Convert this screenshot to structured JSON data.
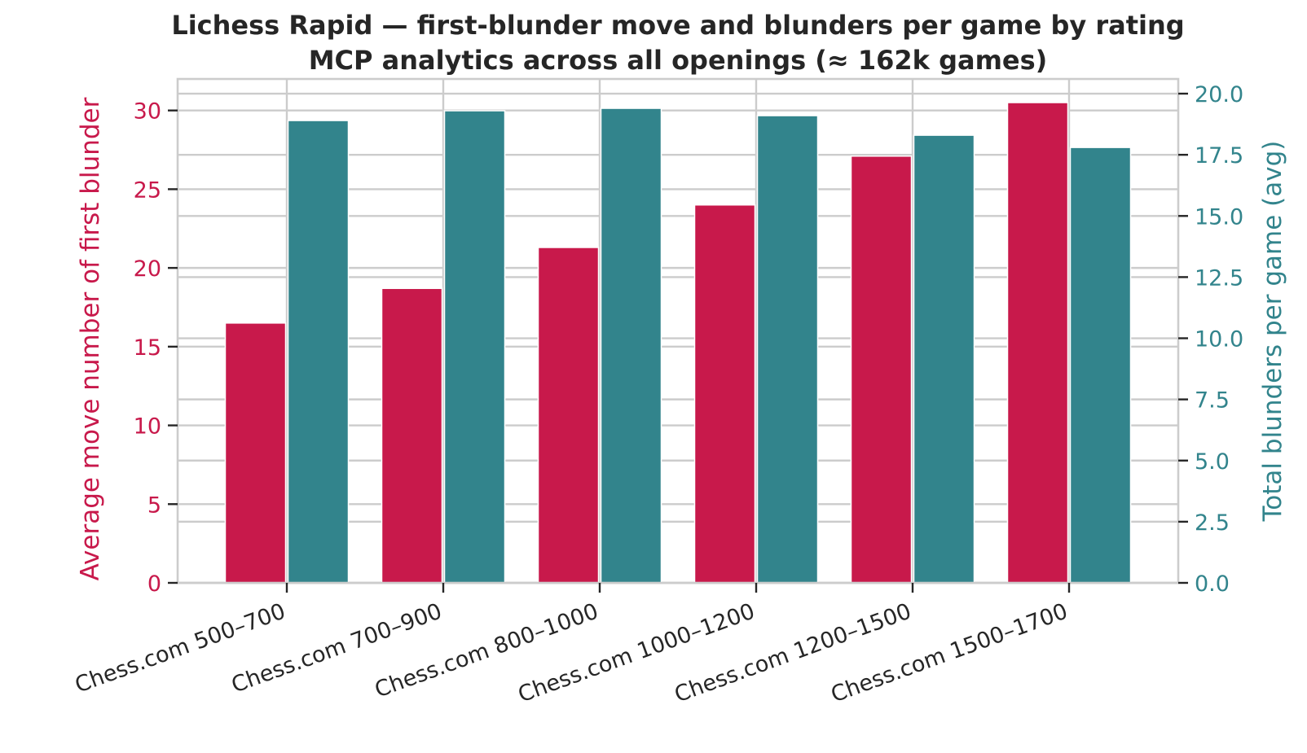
{
  "chart_data": {
    "type": "bar",
    "title": "Lichess Rapid — first-blunder move and blunders per game by rating",
    "subtitle": "MCP analytics across all openings (≈ 162k games)",
    "categories": [
      "Chess.com 500–700",
      "Chess.com 700–900",
      "Chess.com 800–1000",
      "Chess.com 1000–1200",
      "Chess.com 1200–1500",
      "Chess.com 1500–1700"
    ],
    "series": [
      {
        "axis": "left",
        "color": "#c8194b",
        "values": [
          16.5,
          18.7,
          21.3,
          24.0,
          27.1,
          30.5
        ]
      },
      {
        "axis": "right",
        "color": "#32848c",
        "values": [
          18.9,
          19.3,
          19.4,
          19.1,
          18.3,
          17.8
        ]
      }
    ],
    "ylabel_left": "Average move number of first blunder",
    "ylabel_right": "Total blunders per game (avg)",
    "ylim_left": [
      0,
      32
    ],
    "ylim_right": [
      0,
      20.6
    ],
    "yticks_left": [
      "0",
      "5",
      "10",
      "15",
      "20",
      "25",
      "30"
    ],
    "yticks_right": [
      "0.0",
      "2.5",
      "5.0",
      "7.5",
      "10.0",
      "12.5",
      "15.0",
      "17.5",
      "20.0"
    ],
    "grid": true,
    "legend": "none"
  }
}
